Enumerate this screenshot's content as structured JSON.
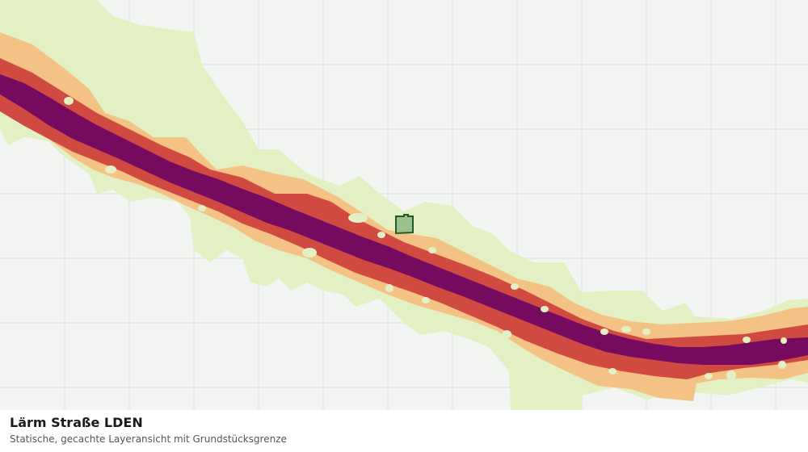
{
  "map": {
    "layer_title": "Lärm Straße LDEN",
    "subtitle": "Statische, gecachte Layeransicht mit Grundstücksgrenze",
    "colors": {
      "background": "#f3f5f2",
      "grid": "#dedede",
      "zone_light": "#e3f0c3",
      "zone_orange": "#f4c285",
      "zone_red": "#d14a42",
      "zone_purple": "#750a5f",
      "parcel_fill": "#9cc28c",
      "parcel_outline": "#1f5a2a"
    }
  }
}
